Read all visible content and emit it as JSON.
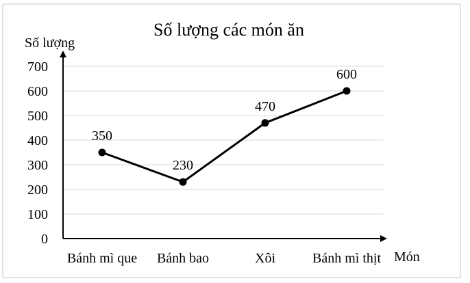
{
  "chart_data": {
    "type": "line",
    "title": "Số lượng các món ăn",
    "xlabel": "Món",
    "ylabel": "Số lượng",
    "categories": [
      "Bánh mì que",
      "Bánh bao",
      "Xôi",
      "Bánh mì thịt"
    ],
    "values": [
      350,
      230,
      470,
      600
    ],
    "data_labels": [
      "350",
      "230",
      "470",
      "600"
    ],
    "yticks": [
      0,
      100,
      200,
      300,
      400,
      500,
      600,
      700
    ],
    "ylim": [
      0,
      700
    ],
    "grid": true,
    "legend": "none",
    "colors": {
      "line": "#000000",
      "grid": "#d9d9d9",
      "frame": "#d0d0d0",
      "text": "#000000"
    }
  }
}
